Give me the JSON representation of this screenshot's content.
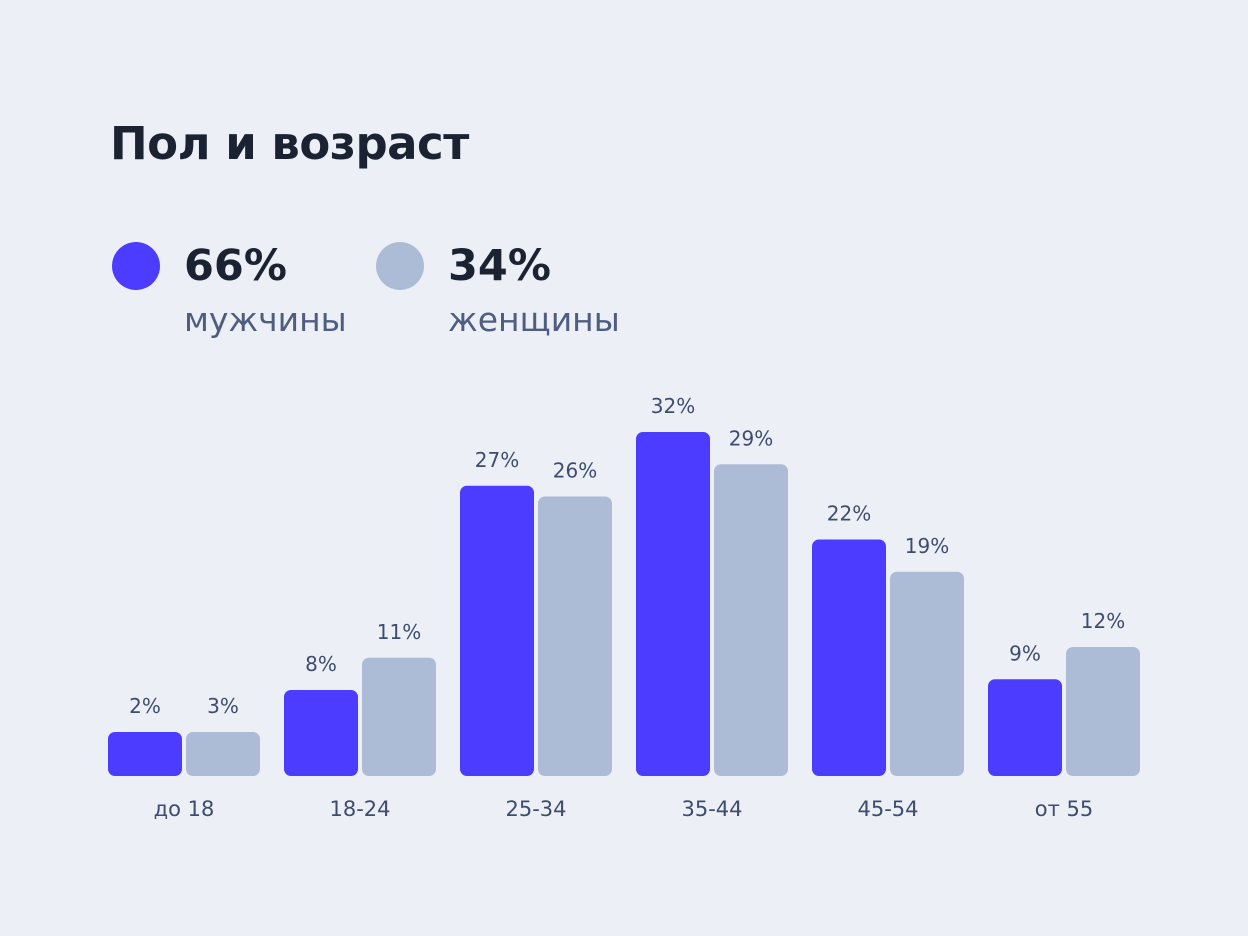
{
  "title": "Пол и возраст",
  "legend": [
    {
      "value": "66%",
      "label": "мужчины",
      "color": "#4b3cff"
    },
    {
      "value": "34%",
      "label": "женщины",
      "color": "#adbcd6"
    }
  ],
  "chart_data": {
    "type": "bar",
    "title": "Пол и возраст",
    "categories": [
      "до 18",
      "18-24",
      "25-34",
      "35-44",
      "45-54",
      "от 55"
    ],
    "series": [
      {
        "name": "мужчины",
        "color": "#4b3cff",
        "values": [
          2,
          8,
          27,
          32,
          22,
          9
        ],
        "labels": [
          "2%",
          "8%",
          "27%",
          "32%",
          "22%",
          "9%"
        ]
      },
      {
        "name": "женщины",
        "color": "#adbcd6",
        "values": [
          3,
          11,
          26,
          29,
          19,
          12
        ],
        "labels": [
          "3%",
          "11%",
          "26%",
          "29%",
          "19%",
          "12%"
        ]
      }
    ],
    "grid": false,
    "legend_position": "top-left"
  }
}
